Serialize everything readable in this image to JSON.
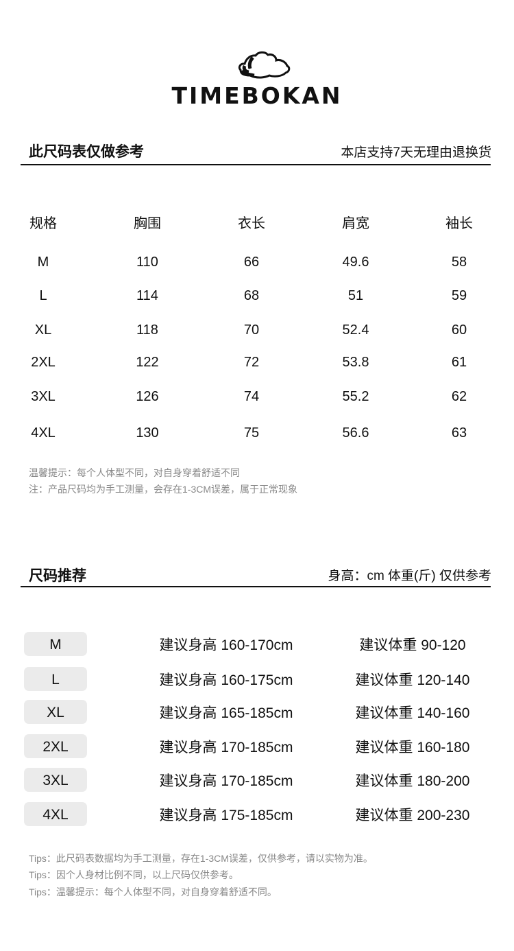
{
  "brand": {
    "name": "TIMEBOKAN",
    "logo": "cloud-logo"
  },
  "size_chart": {
    "title": "此尺码表仅做参考",
    "policy": "本店支持7天无理由退换货",
    "headers": [
      "规格",
      "胸围",
      "衣长",
      "肩宽",
      "袖长"
    ],
    "rows": [
      [
        "M",
        "110",
        "66",
        "49.6",
        "58"
      ],
      [
        "L",
        "114",
        "68",
        "51",
        "59"
      ],
      [
        "XL",
        "118",
        "70",
        "52.4",
        "60"
      ],
      [
        "2XL",
        "122",
        "72",
        "53.8",
        "61"
      ],
      [
        "3XL",
        "126",
        "74",
        "55.2",
        "62"
      ],
      [
        "4XL",
        "130",
        "75",
        "56.6",
        "63"
      ]
    ],
    "notes": [
      "温馨提示：每个人体型不同，对自身穿着舒适不同",
      "注：产品尺码均为手工测量，会存在1-3CM误差，属于正常现象"
    ]
  },
  "recommend": {
    "title": "尺码推荐",
    "unit_note": "身高：cm 体重(斤) 仅供参考",
    "rows": [
      {
        "size": "M",
        "height": "建议身高 160-170cm",
        "weight": "建议体重 90-120"
      },
      {
        "size": "L",
        "height": "建议身高 160-175cm",
        "weight": "建议体重 120-140"
      },
      {
        "size": "XL",
        "height": "建议身高 165-185cm",
        "weight": "建议体重 140-160"
      },
      {
        "size": "2XL",
        "height": "建议身高 170-185cm",
        "weight": "建议体重 160-180"
      },
      {
        "size": "3XL",
        "height": "建议身高 170-185cm",
        "weight": "建议体重 180-200"
      },
      {
        "size": "4XL",
        "height": "建议身高 175-185cm",
        "weight": "建议体重 200-230"
      }
    ],
    "tips": [
      "Tips：此尺码表数据均为手工测量，存在1-3CM误差，仅供参考，请以实物为准。",
      "Tips：因个人身材比例不同，以上尺码仅供参考。",
      "Tips：温馨提示：每个人体型不同，对自身穿着舒适不同。"
    ]
  }
}
